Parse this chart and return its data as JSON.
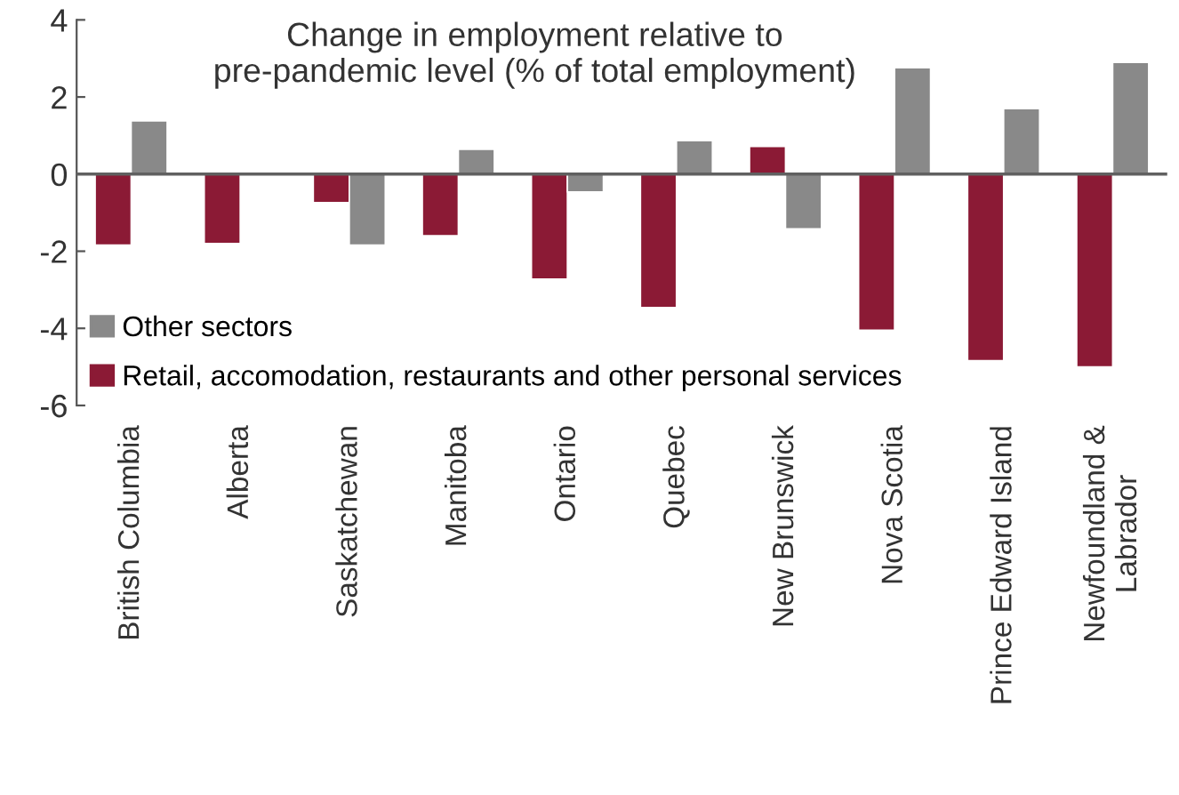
{
  "chart_data": {
    "type": "bar",
    "title": "Change in employment relative to\npre-pandemic level (% of total employment)",
    "categories": [
      "British Columbia",
      "Alberta",
      "Saskatchewan",
      "Manitoba",
      "Ontario",
      "Quebec",
      "New Brunswick",
      "Nova Scotia",
      "Prince Edward Island",
      "Newfoundland &\nLabrador"
    ],
    "series": [
      {
        "name": "Retail, accomodation, restaurants and other personal services",
        "color": "#8b1a35",
        "values": [
          -1.84,
          -1.8,
          -0.74,
          -1.6,
          -2.72,
          -3.46,
          0.72,
          -4.05,
          -4.84,
          -5.0
        ]
      },
      {
        "name": "Other sectors",
        "color": "#898989",
        "values": [
          1.38,
          null,
          -1.84,
          0.64,
          -0.46,
          0.87,
          -1.42,
          2.76,
          1.7,
          2.9
        ]
      }
    ],
    "ylim": [
      -6,
      4
    ],
    "yticks": [
      -6,
      -4,
      -2,
      0,
      2,
      4
    ],
    "legend": "bottom left"
  }
}
